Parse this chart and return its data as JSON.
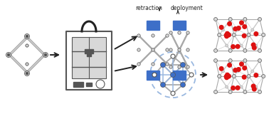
{
  "background_color": "#ffffff",
  "text_retraction": "retraction",
  "text_deployment": "deployment",
  "arrow_color": "#222222",
  "blue_color": "#3d6fc8",
  "light_blue": "#9ab8e0",
  "gray_frame": "#aaaaaa",
  "dark_gray": "#555555",
  "light_gray": "#d8d8d8",
  "red_color": "#dd1111",
  "white": "#ffffff",
  "figsize": [
    3.78,
    1.67
  ],
  "dpi": 100
}
